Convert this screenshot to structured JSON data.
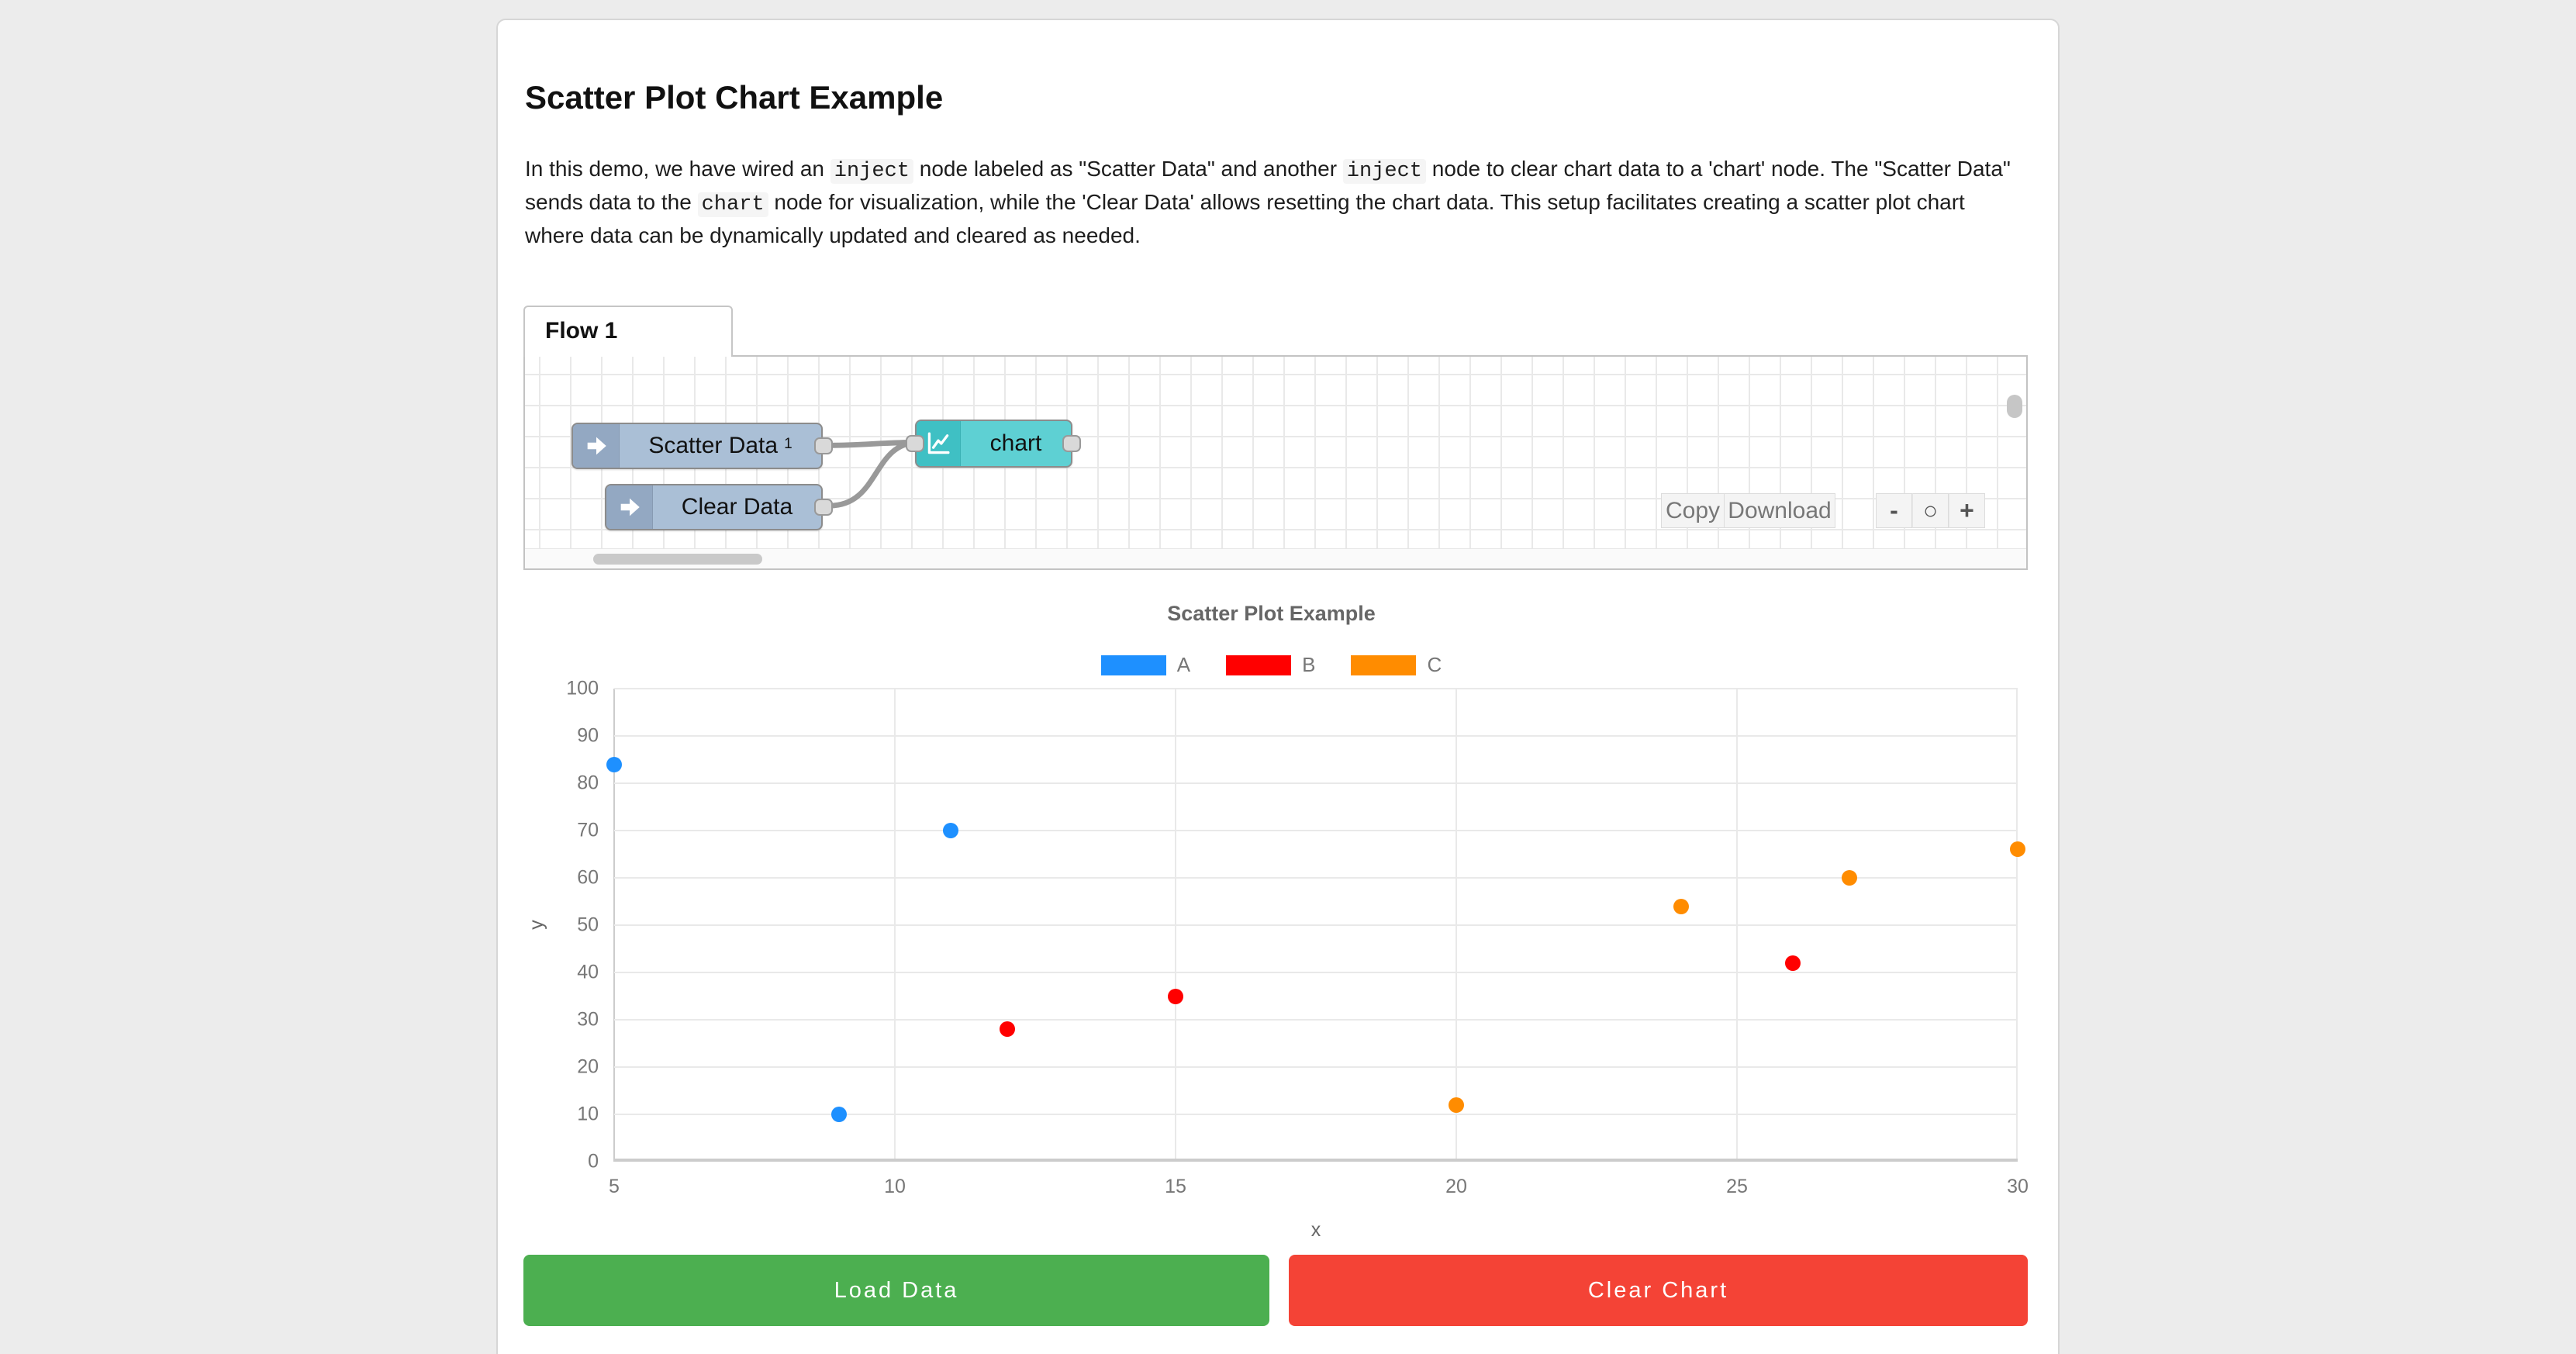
{
  "page": {
    "background": "#ececec"
  },
  "header": {
    "title": "Scatter Plot Chart Example"
  },
  "description": {
    "segments": [
      {
        "type": "text",
        "text": "In this demo, we have wired an "
      },
      {
        "type": "code",
        "text": "inject"
      },
      {
        "type": "text",
        "text": " node labeled as \"Scatter Data\" and another "
      },
      {
        "type": "code",
        "text": "inject"
      },
      {
        "type": "text",
        "text": " node to clear chart data to a 'chart' node. The \"Scatter Data\" sends data to the "
      },
      {
        "type": "code",
        "text": "chart"
      },
      {
        "type": "text",
        "text": " node for visualization, while the 'Clear Data' allows resetting the chart data. This setup facilitates creating a scatter plot chart where data can be dynamically updated and cleared as needed."
      }
    ]
  },
  "flow": {
    "tab_label": "Flow 1",
    "nodes": [
      {
        "label": "Scatter Data",
        "badge": "1",
        "type": "inject"
      },
      {
        "label": "Clear Data",
        "type": "inject"
      },
      {
        "label": "chart",
        "type": "chart"
      }
    ],
    "colors": {
      "inject_body": "#aabfd6",
      "inject_icon": "#93a8c2",
      "chart_body": "#5ed0d3",
      "chart_icon": "#3fc0c4"
    },
    "toolbar": {
      "copy_label": "Copy",
      "download_label": "Download"
    },
    "zoom_controls": {
      "zoom_out": "-",
      "zoom_reset": "○",
      "zoom_in": "+"
    }
  },
  "chart_data": {
    "type": "scatter",
    "title": "Scatter Plot Example",
    "xlabel": "x",
    "ylabel": "y",
    "xlim": [
      5,
      30
    ],
    "ylim": [
      0,
      100
    ],
    "x_ticks": [
      5,
      10,
      15,
      20,
      25,
      30
    ],
    "y_ticks": [
      0,
      10,
      20,
      30,
      40,
      50,
      60,
      70,
      80,
      90,
      100
    ],
    "grid": true,
    "legend_position": "top",
    "series": [
      {
        "name": "A",
        "color": "#1e90ff",
        "points": [
          [
            5,
            84
          ],
          [
            9,
            10
          ],
          [
            11,
            70
          ]
        ]
      },
      {
        "name": "B",
        "color": "#ff0000",
        "points": [
          [
            12,
            28
          ],
          [
            15,
            35
          ],
          [
            26,
            42
          ]
        ]
      },
      {
        "name": "C",
        "color": "#ff8c00",
        "points": [
          [
            20,
            12
          ],
          [
            24,
            54
          ],
          [
            27,
            60
          ],
          [
            30,
            66
          ]
        ]
      }
    ]
  },
  "actions": {
    "load_label": "Load Data",
    "load_color": "#4caf50",
    "clear_label": "Clear Chart",
    "clear_color": "#f44336"
  }
}
